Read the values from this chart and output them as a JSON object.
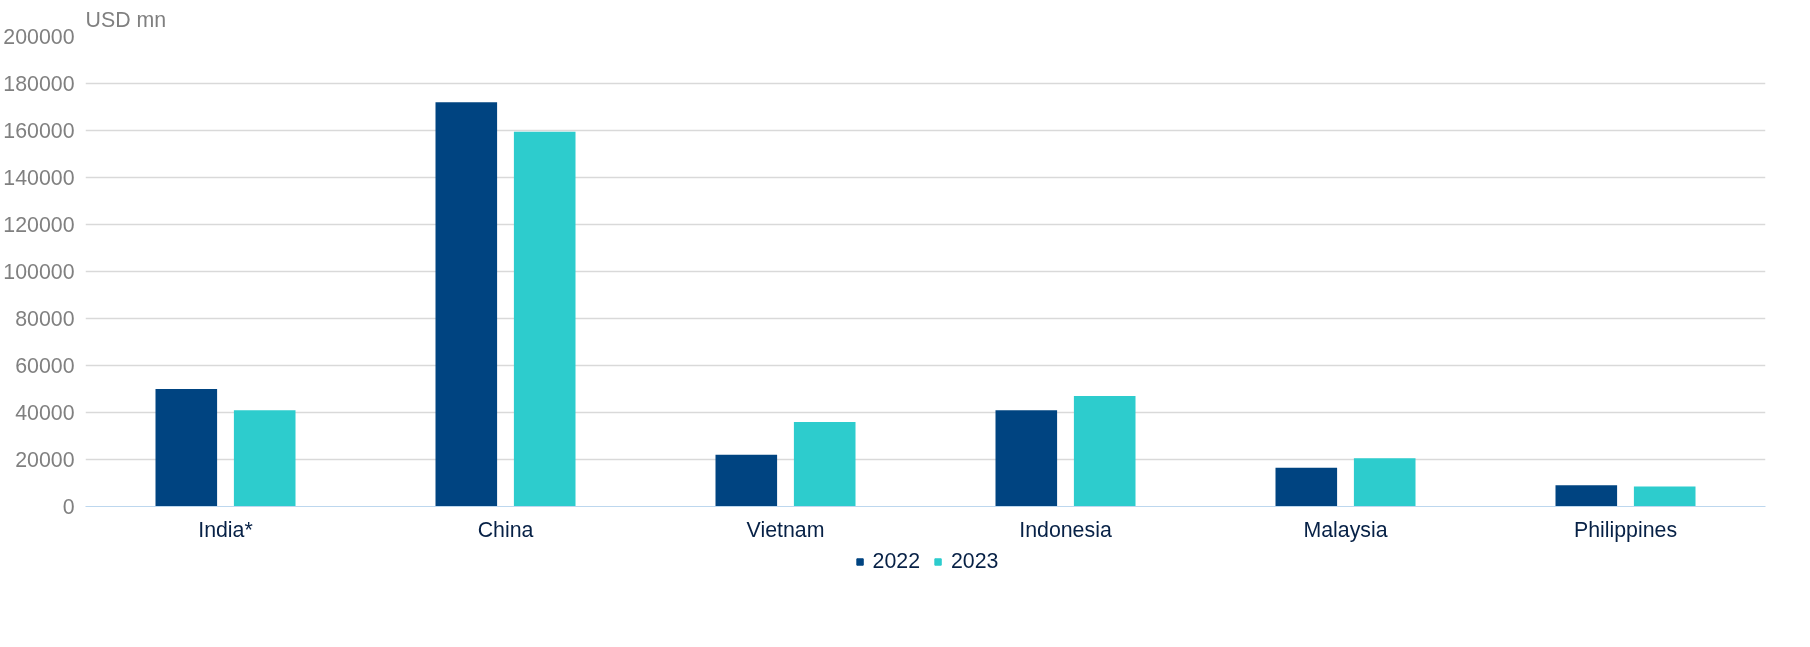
{
  "chart_data": {
    "type": "bar",
    "ylabel": "USD mn",
    "categories": [
      "India*",
      "China",
      "Vietnam",
      "Indonesia",
      "Malaysia",
      "Philippines"
    ],
    "series": [
      {
        "name": "2022",
        "color": "#004481",
        "values": [
          50000,
          172000,
          22000,
          41000,
          16500,
          9000
        ]
      },
      {
        "name": "2023",
        "color": "#2dcccd",
        "values": [
          41000,
          159500,
          36000,
          47000,
          20500,
          8500
        ]
      }
    ],
    "ylim": [
      0,
      200000
    ],
    "yticks": [
      0,
      20000,
      40000,
      60000,
      80000,
      100000,
      120000,
      140000,
      160000,
      180000,
      200000
    ],
    "grid": "y",
    "legend": "bottom"
  }
}
